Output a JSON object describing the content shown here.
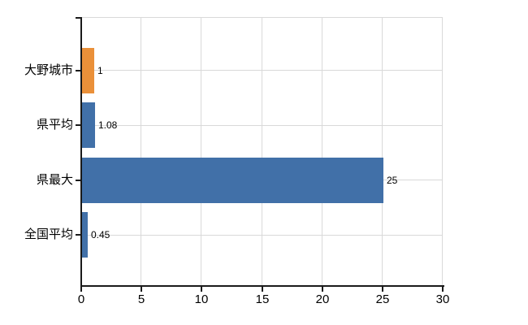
{
  "chart_data": {
    "type": "bar",
    "orientation": "horizontal",
    "title": "",
    "categories": [
      "大野城市",
      "県平均",
      "県最大",
      "全国平均"
    ],
    "values": [
      1,
      1.08,
      25,
      0.45
    ],
    "value_labels": [
      "1",
      "1.08",
      "25",
      "0.45"
    ],
    "highlight_index": 0,
    "series_name": "",
    "xlabel": "",
    "ylabel": "",
    "x_ticks": [
      "0",
      "5",
      "10",
      "15",
      "20",
      "25",
      "30"
    ],
    "x_tick_values": [
      0,
      5,
      10,
      15,
      20,
      25,
      30
    ],
    "xlim": [
      0,
      30
    ],
    "grid": true,
    "legend": "none",
    "colors": {
      "highlight_bar": "#EA9039",
      "default_bar": "#4170A8",
      "gridline": "#D9D9D9",
      "axis": "#1A1A1A",
      "text": "#000000"
    }
  }
}
